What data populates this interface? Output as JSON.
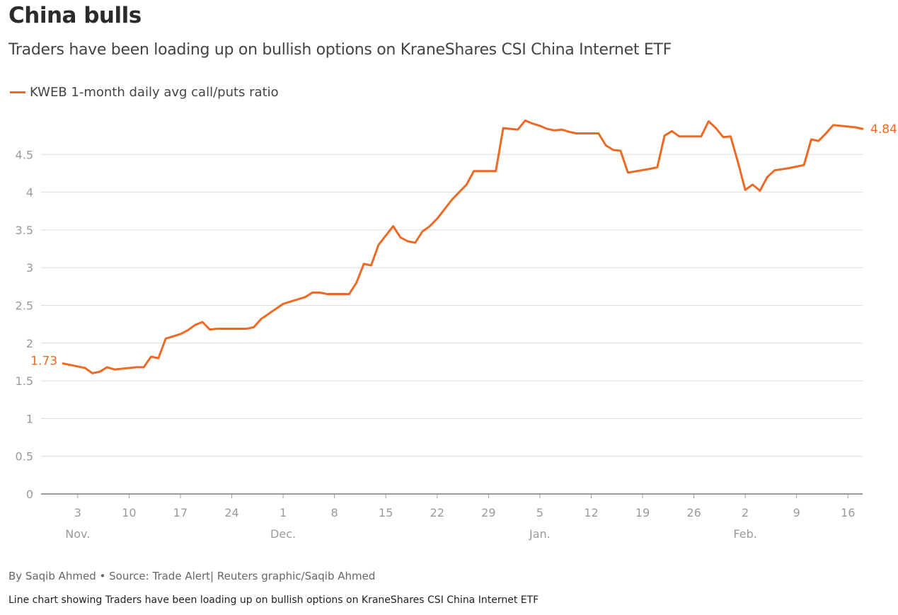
{
  "title": "China bulls",
  "subtitle": "Traders have been loading up on bullish options on KraneShares CSI China Internet ETF",
  "footer": {
    "byline": "By Saqib Ahmed • Source: Trade Alert| Reuters graphic/Saqib Ahmed",
    "description": "Line chart showing Traders have been loading up on bullish options on KraneShares CSI China Internet ETF"
  },
  "colors": {
    "series": "#ee6a24",
    "grid": "#dcdcdc",
    "axis": "#9a9a9a",
    "tick_text": "#9a9a9a"
  },
  "chart_data": {
    "type": "line",
    "title": "China bulls",
    "subtitle": "Traders have been loading up on bullish options on KraneShares CSI China Internet ETF",
    "xlabel": "",
    "ylabel": "",
    "ylim": [
      0,
      5
    ],
    "xlim": [
      "2020-10-29",
      "2021-02-18"
    ],
    "grid": true,
    "legend_position": "top-left",
    "y_ticks": [
      0,
      0.5,
      1,
      1.5,
      2,
      2.5,
      3,
      3.5,
      4,
      4.5
    ],
    "y_tick_labels": [
      "0",
      "0.5",
      "1",
      "1.5",
      "2",
      "2.5",
      "3",
      "3.5",
      "4",
      "4.5"
    ],
    "x_ticks": [
      {
        "date": "2020-11-03",
        "label": "3",
        "month": "Nov."
      },
      {
        "date": "2020-11-10",
        "label": "10",
        "month": ""
      },
      {
        "date": "2020-11-17",
        "label": "17",
        "month": ""
      },
      {
        "date": "2020-11-24",
        "label": "24",
        "month": ""
      },
      {
        "date": "2020-12-01",
        "label": "1",
        "month": "Dec."
      },
      {
        "date": "2020-12-08",
        "label": "8",
        "month": ""
      },
      {
        "date": "2020-12-15",
        "label": "15",
        "month": ""
      },
      {
        "date": "2020-12-22",
        "label": "22",
        "month": ""
      },
      {
        "date": "2020-12-29",
        "label": "29",
        "month": ""
      },
      {
        "date": "2021-01-05",
        "label": "5",
        "month": "Jan."
      },
      {
        "date": "2021-01-12",
        "label": "12",
        "month": ""
      },
      {
        "date": "2021-01-19",
        "label": "19",
        "month": ""
      },
      {
        "date": "2021-01-26",
        "label": "26",
        "month": ""
      },
      {
        "date": "2021-02-02",
        "label": "2",
        "month": "Feb."
      },
      {
        "date": "2021-02-09",
        "label": "9",
        "month": ""
      },
      {
        "date": "2021-02-16",
        "label": "16",
        "month": ""
      }
    ],
    "series": [
      {
        "name": "KWEB 1-month daily avg call/puts ratio",
        "color": "#ee6a24",
        "start_label": "1.73",
        "end_label": "4.84",
        "points": [
          {
            "x": "2020-11-01",
            "y": 1.73
          },
          {
            "x": "2020-11-02",
            "y": 1.71
          },
          {
            "x": "2020-11-03",
            "y": 1.69
          },
          {
            "x": "2020-11-04",
            "y": 1.67
          },
          {
            "x": "2020-11-05",
            "y": 1.6
          },
          {
            "x": "2020-11-06",
            "y": 1.62
          },
          {
            "x": "2020-11-07",
            "y": 1.68
          },
          {
            "x": "2020-11-08",
            "y": 1.65
          },
          {
            "x": "2020-11-10",
            "y": 1.67
          },
          {
            "x": "2020-11-11",
            "y": 1.68
          },
          {
            "x": "2020-11-12",
            "y": 1.68
          },
          {
            "x": "2020-11-13",
            "y": 1.82
          },
          {
            "x": "2020-11-14",
            "y": 1.8
          },
          {
            "x": "2020-11-15",
            "y": 2.06
          },
          {
            "x": "2020-11-17",
            "y": 2.12
          },
          {
            "x": "2020-11-18",
            "y": 2.17
          },
          {
            "x": "2020-11-19",
            "y": 2.24
          },
          {
            "x": "2020-11-20",
            "y": 2.28
          },
          {
            "x": "2020-11-21",
            "y": 2.18
          },
          {
            "x": "2020-11-22",
            "y": 2.19
          },
          {
            "x": "2020-11-26",
            "y": 2.19
          },
          {
            "x": "2020-11-27",
            "y": 2.21
          },
          {
            "x": "2020-11-28",
            "y": 2.32
          },
          {
            "x": "2020-12-01",
            "y": 2.52
          },
          {
            "x": "2020-12-02",
            "y": 2.55
          },
          {
            "x": "2020-12-03",
            "y": 2.58
          },
          {
            "x": "2020-12-04",
            "y": 2.61
          },
          {
            "x": "2020-12-05",
            "y": 2.67
          },
          {
            "x": "2020-12-06",
            "y": 2.67
          },
          {
            "x": "2020-12-07",
            "y": 2.65
          },
          {
            "x": "2020-12-09",
            "y": 2.65
          },
          {
            "x": "2020-12-10",
            "y": 2.65
          },
          {
            "x": "2020-12-11",
            "y": 2.8
          },
          {
            "x": "2020-12-12",
            "y": 3.05
          },
          {
            "x": "2020-12-13",
            "y": 3.03
          },
          {
            "x": "2020-12-14",
            "y": 3.3
          },
          {
            "x": "2020-12-16",
            "y": 3.55
          },
          {
            "x": "2020-12-17",
            "y": 3.4
          },
          {
            "x": "2020-12-18",
            "y": 3.35
          },
          {
            "x": "2020-12-19",
            "y": 3.33
          },
          {
            "x": "2020-12-20",
            "y": 3.48
          },
          {
            "x": "2020-12-21",
            "y": 3.55
          },
          {
            "x": "2020-12-22",
            "y": 3.65
          },
          {
            "x": "2020-12-24",
            "y": 3.9
          },
          {
            "x": "2020-12-25",
            "y": 4.0
          },
          {
            "x": "2020-12-26",
            "y": 4.1
          },
          {
            "x": "2020-12-27",
            "y": 4.28
          },
          {
            "x": "2020-12-29",
            "y": 4.28
          },
          {
            "x": "2020-12-30",
            "y": 4.28
          },
          {
            "x": "2020-12-31",
            "y": 4.85
          },
          {
            "x": "2021-01-01",
            "y": 4.84
          },
          {
            "x": "2021-01-02",
            "y": 4.83
          },
          {
            "x": "2021-01-03",
            "y": 4.95
          },
          {
            "x": "2021-01-04",
            "y": 4.91
          },
          {
            "x": "2021-01-05",
            "y": 4.88
          },
          {
            "x": "2021-01-06",
            "y": 4.84
          },
          {
            "x": "2021-01-07",
            "y": 4.82
          },
          {
            "x": "2021-01-08",
            "y": 4.83
          },
          {
            "x": "2021-01-09",
            "y": 4.8
          },
          {
            "x": "2021-01-10",
            "y": 4.78
          },
          {
            "x": "2021-01-11",
            "y": 4.78
          },
          {
            "x": "2021-01-13",
            "y": 4.78
          },
          {
            "x": "2021-01-14",
            "y": 4.62
          },
          {
            "x": "2021-01-15",
            "y": 4.56
          },
          {
            "x": "2021-01-16",
            "y": 4.55
          },
          {
            "x": "2021-01-17",
            "y": 4.26
          },
          {
            "x": "2021-01-20",
            "y": 4.31
          },
          {
            "x": "2021-01-21",
            "y": 4.33
          },
          {
            "x": "2021-01-22",
            "y": 4.75
          },
          {
            "x": "2021-01-23",
            "y": 4.81
          },
          {
            "x": "2021-01-24",
            "y": 4.74
          },
          {
            "x": "2021-01-25",
            "y": 4.74
          },
          {
            "x": "2021-01-27",
            "y": 4.74
          },
          {
            "x": "2021-01-28",
            "y": 4.94
          },
          {
            "x": "2021-01-29",
            "y": 4.85
          },
          {
            "x": "2021-01-30",
            "y": 4.73
          },
          {
            "x": "2021-01-31",
            "y": 4.74
          },
          {
            "x": "2021-02-01",
            "y": 4.4
          },
          {
            "x": "2021-02-02",
            "y": 4.03
          },
          {
            "x": "2021-02-03",
            "y": 4.1
          },
          {
            "x": "2021-02-04",
            "y": 4.02
          },
          {
            "x": "2021-02-05",
            "y": 4.2
          },
          {
            "x": "2021-02-06",
            "y": 4.29
          },
          {
            "x": "2021-02-08",
            "y": 4.32
          },
          {
            "x": "2021-02-09",
            "y": 4.34
          },
          {
            "x": "2021-02-10",
            "y": 4.36
          },
          {
            "x": "2021-02-11",
            "y": 4.7
          },
          {
            "x": "2021-02-12",
            "y": 4.68
          },
          {
            "x": "2021-02-13",
            "y": 4.78
          },
          {
            "x": "2021-02-14",
            "y": 4.89
          },
          {
            "x": "2021-02-17",
            "y": 4.86
          },
          {
            "x": "2021-02-18",
            "y": 4.84
          }
        ]
      }
    ]
  }
}
